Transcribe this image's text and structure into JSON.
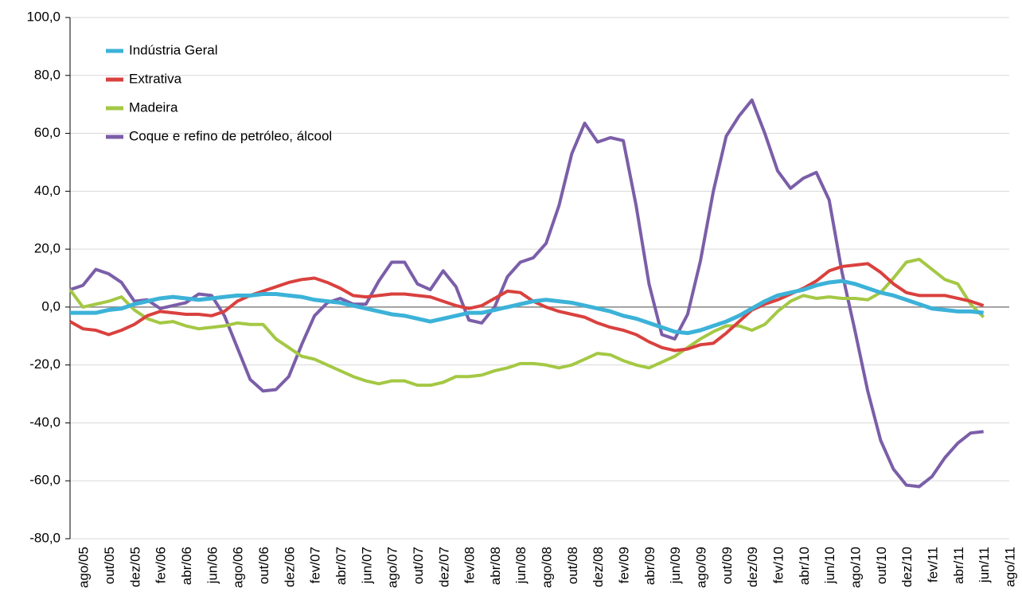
{
  "chart_data": {
    "type": "line",
    "categories": [
      null,
      "ago/05",
      null,
      "out/05",
      null,
      "dez/05",
      null,
      "fev/06",
      null,
      "abr/06",
      null,
      "jun/06",
      null,
      "ago/06",
      null,
      "out/06",
      null,
      "dez/06",
      null,
      "fev/07",
      null,
      "abr/07",
      null,
      "jun/07",
      null,
      "ago/07",
      null,
      "out/07",
      null,
      "dez/07",
      null,
      "fev/08",
      null,
      "abr/08",
      null,
      "jun/08",
      null,
      "ago/08",
      null,
      "out/08",
      null,
      "dez/08",
      null,
      "fev/09",
      null,
      "abr/09",
      null,
      "jun/09",
      null,
      "ago/09",
      null,
      "out/09",
      null,
      "dez/09",
      null,
      "fev/10",
      null,
      "abr/10",
      null,
      "jun/10",
      null,
      "ago/10",
      null,
      "out/10",
      null,
      "dez/10",
      null,
      "fev/11",
      null,
      "abr/11",
      null,
      "jun/11",
      null,
      "ago/11"
    ],
    "series": [
      {
        "name": "Indústria Geral",
        "color": "#3cb2d8",
        "values": [
          -2,
          -2,
          -2,
          -1,
          -0.5,
          1,
          2,
          3,
          3.5,
          3,
          2.5,
          3,
          3.5,
          4,
          4,
          4.5,
          4.5,
          4,
          3.5,
          2.5,
          2,
          1.5,
          0.5,
          -0.5,
          -1.5,
          -2.5,
          -3,
          -4,
          -5,
          -4,
          -3,
          -2,
          -2,
          -1,
          0,
          1,
          2,
          2.5,
          2,
          1.5,
          0.5,
          -0.5,
          -1.5,
          -3,
          -4,
          -5.5,
          -7,
          -8.5,
          -9,
          -8,
          -6.5,
          -5,
          -3,
          -0.5,
          2,
          4,
          5,
          6,
          7.5,
          8.5,
          9,
          8,
          6.5,
          5,
          4,
          2.5,
          1,
          -0.5,
          -1,
          -1.5,
          -1.5,
          -2,
          null,
          null
        ]
      },
      {
        "name": "Extrativa",
        "color": "#d9413e",
        "values": [
          -5,
          -7.5,
          -8,
          -9.5,
          -8,
          -6,
          -3,
          -1.5,
          -2,
          -2.5,
          -2.5,
          -3,
          -1.5,
          2,
          4,
          5.5,
          7,
          8.5,
          9.5,
          10,
          8.5,
          6.5,
          4,
          3.5,
          4,
          4.5,
          4.5,
          4,
          3.5,
          2,
          0.5,
          -0.5,
          0.5,
          3,
          5.5,
          5,
          2,
          0,
          -1.5,
          -2.5,
          -3.5,
          -5.5,
          -7,
          -8,
          -9.5,
          -12,
          -14,
          -15,
          -14.5,
          -13,
          -12.5,
          -9,
          -5,
          -1,
          1,
          2.5,
          4.5,
          6.5,
          9,
          12.5,
          14,
          14.5,
          15,
          12,
          8,
          5,
          4,
          4,
          4,
          3,
          2,
          0.5,
          null,
          null
        ]
      },
      {
        "name": "Madeira",
        "color": "#a4c844",
        "values": [
          6,
          0,
          1,
          2,
          3.5,
          -1,
          -4,
          -5.5,
          -5,
          -6.5,
          -7.5,
          -7,
          -6.5,
          -5.5,
          -6,
          -6,
          -11,
          -14,
          -17,
          -18,
          -20,
          -22,
          -24,
          -25.5,
          -26.5,
          -25.5,
          -25.5,
          -27,
          -27,
          -26,
          -24,
          -24,
          -23.5,
          -22,
          -21,
          -19.5,
          -19.5,
          -20,
          -21,
          -20,
          -18,
          -16,
          -16.5,
          -18.5,
          -20,
          -21,
          -19,
          -17,
          -14,
          -11,
          -8.5,
          -6.5,
          -6.5,
          -8,
          -6,
          -1.5,
          2,
          4,
          3,
          3.5,
          3,
          3,
          2.5,
          5,
          10,
          15.5,
          16.5,
          13,
          9.5,
          8,
          1,
          -3.5,
          null,
          null
        ]
      },
      {
        "name": "Coque e refino de petróleo, álcool",
        "color": "#7b5ea8",
        "values": [
          6,
          7.5,
          13,
          11.5,
          8.5,
          2,
          2.5,
          -0.5,
          0.5,
          1.5,
          4.5,
          4,
          -3,
          -14,
          -25,
          -29,
          -28.5,
          -24,
          -13,
          -3,
          1.5,
          3,
          1,
          1,
          9,
          15.5,
          15.5,
          8,
          6,
          12.5,
          7,
          -4.5,
          -5.5,
          0,
          10.5,
          15.5,
          17,
          22,
          35,
          53,
          63.5,
          57,
          58.5,
          57.5,
          35,
          8,
          -9.5,
          -11,
          -2.5,
          16,
          40,
          59,
          66,
          71.5,
          60,
          47,
          41,
          44.5,
          46.5,
          37,
          12,
          -8,
          -29,
          -46,
          -56,
          -61.5,
          -62,
          -58.5,
          -52,
          -47,
          -43.5,
          -43,
          null,
          null
        ]
      }
    ],
    "ylim": [
      -80,
      100
    ],
    "yticks": [
      {
        "value": -80,
        "label": "-80,0"
      },
      {
        "value": -60,
        "label": "-60,0"
      },
      {
        "value": -40,
        "label": "-40,0"
      },
      {
        "value": -20,
        "label": "-20,0"
      },
      {
        "value": 0,
        "label": "0,0"
      },
      {
        "value": 20,
        "label": "20,0"
      },
      {
        "value": 40,
        "label": "40,0"
      },
      {
        "value": 60,
        "label": "60,0"
      },
      {
        "value": 80,
        "label": "80,0"
      },
      {
        "value": 100,
        "label": "100,0"
      }
    ],
    "grid": true,
    "legend": "top-left"
  }
}
